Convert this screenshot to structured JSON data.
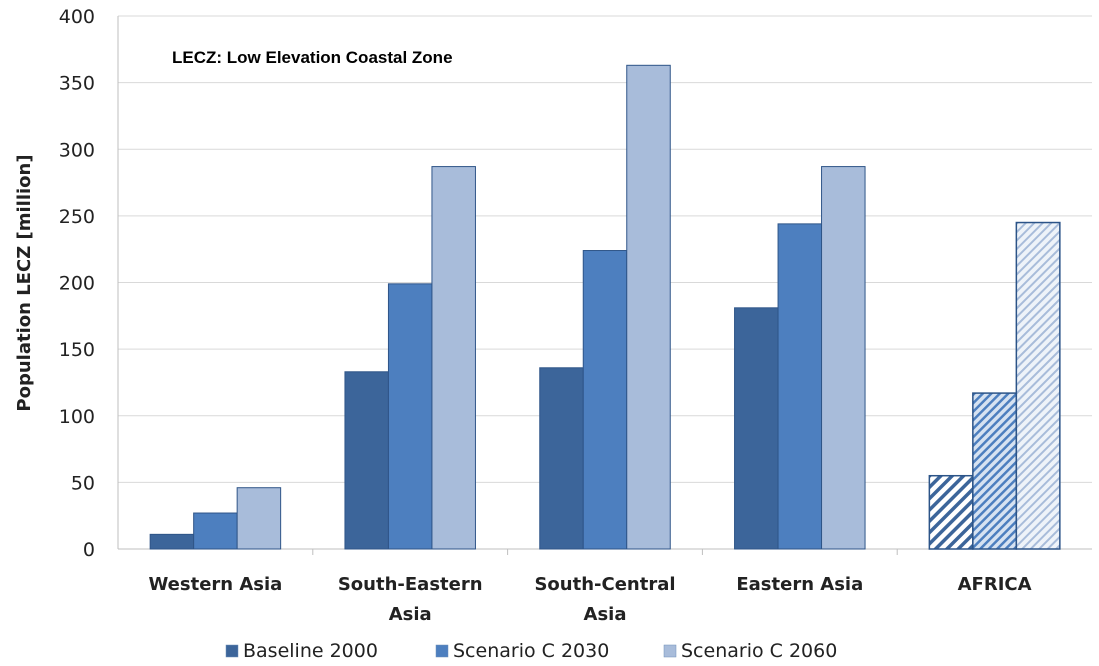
{
  "chart_data": {
    "type": "bar",
    "title": "",
    "annotation": "LECZ: Low Elevation Coastal Zone",
    "xlabel": "",
    "ylabel": "Population LECZ [million]",
    "ylim": [
      0,
      400
    ],
    "yticks": [
      0,
      50,
      100,
      150,
      200,
      250,
      300,
      350,
      400
    ],
    "grid": true,
    "legend_position": "bottom",
    "categories": [
      [
        "Western Asia"
      ],
      [
        "South-Eastern",
        "Asia"
      ],
      [
        "South-Central",
        "Asia"
      ],
      [
        "Eastern Asia"
      ],
      [
        "AFRICA"
      ]
    ],
    "hatched_categories": [
      4
    ],
    "series": [
      {
        "name": "Baseline 2000",
        "color": "#3c659a",
        "values": [
          11,
          133,
          136,
          181,
          55
        ]
      },
      {
        "name": "Scenario C 2030",
        "color": "#4d7fbf",
        "values": [
          27,
          199,
          224,
          244,
          117
        ]
      },
      {
        "name": "Scenario C 2060",
        "color": "#a8bcda",
        "values": [
          46,
          287,
          363,
          287,
          245
        ]
      }
    ]
  }
}
